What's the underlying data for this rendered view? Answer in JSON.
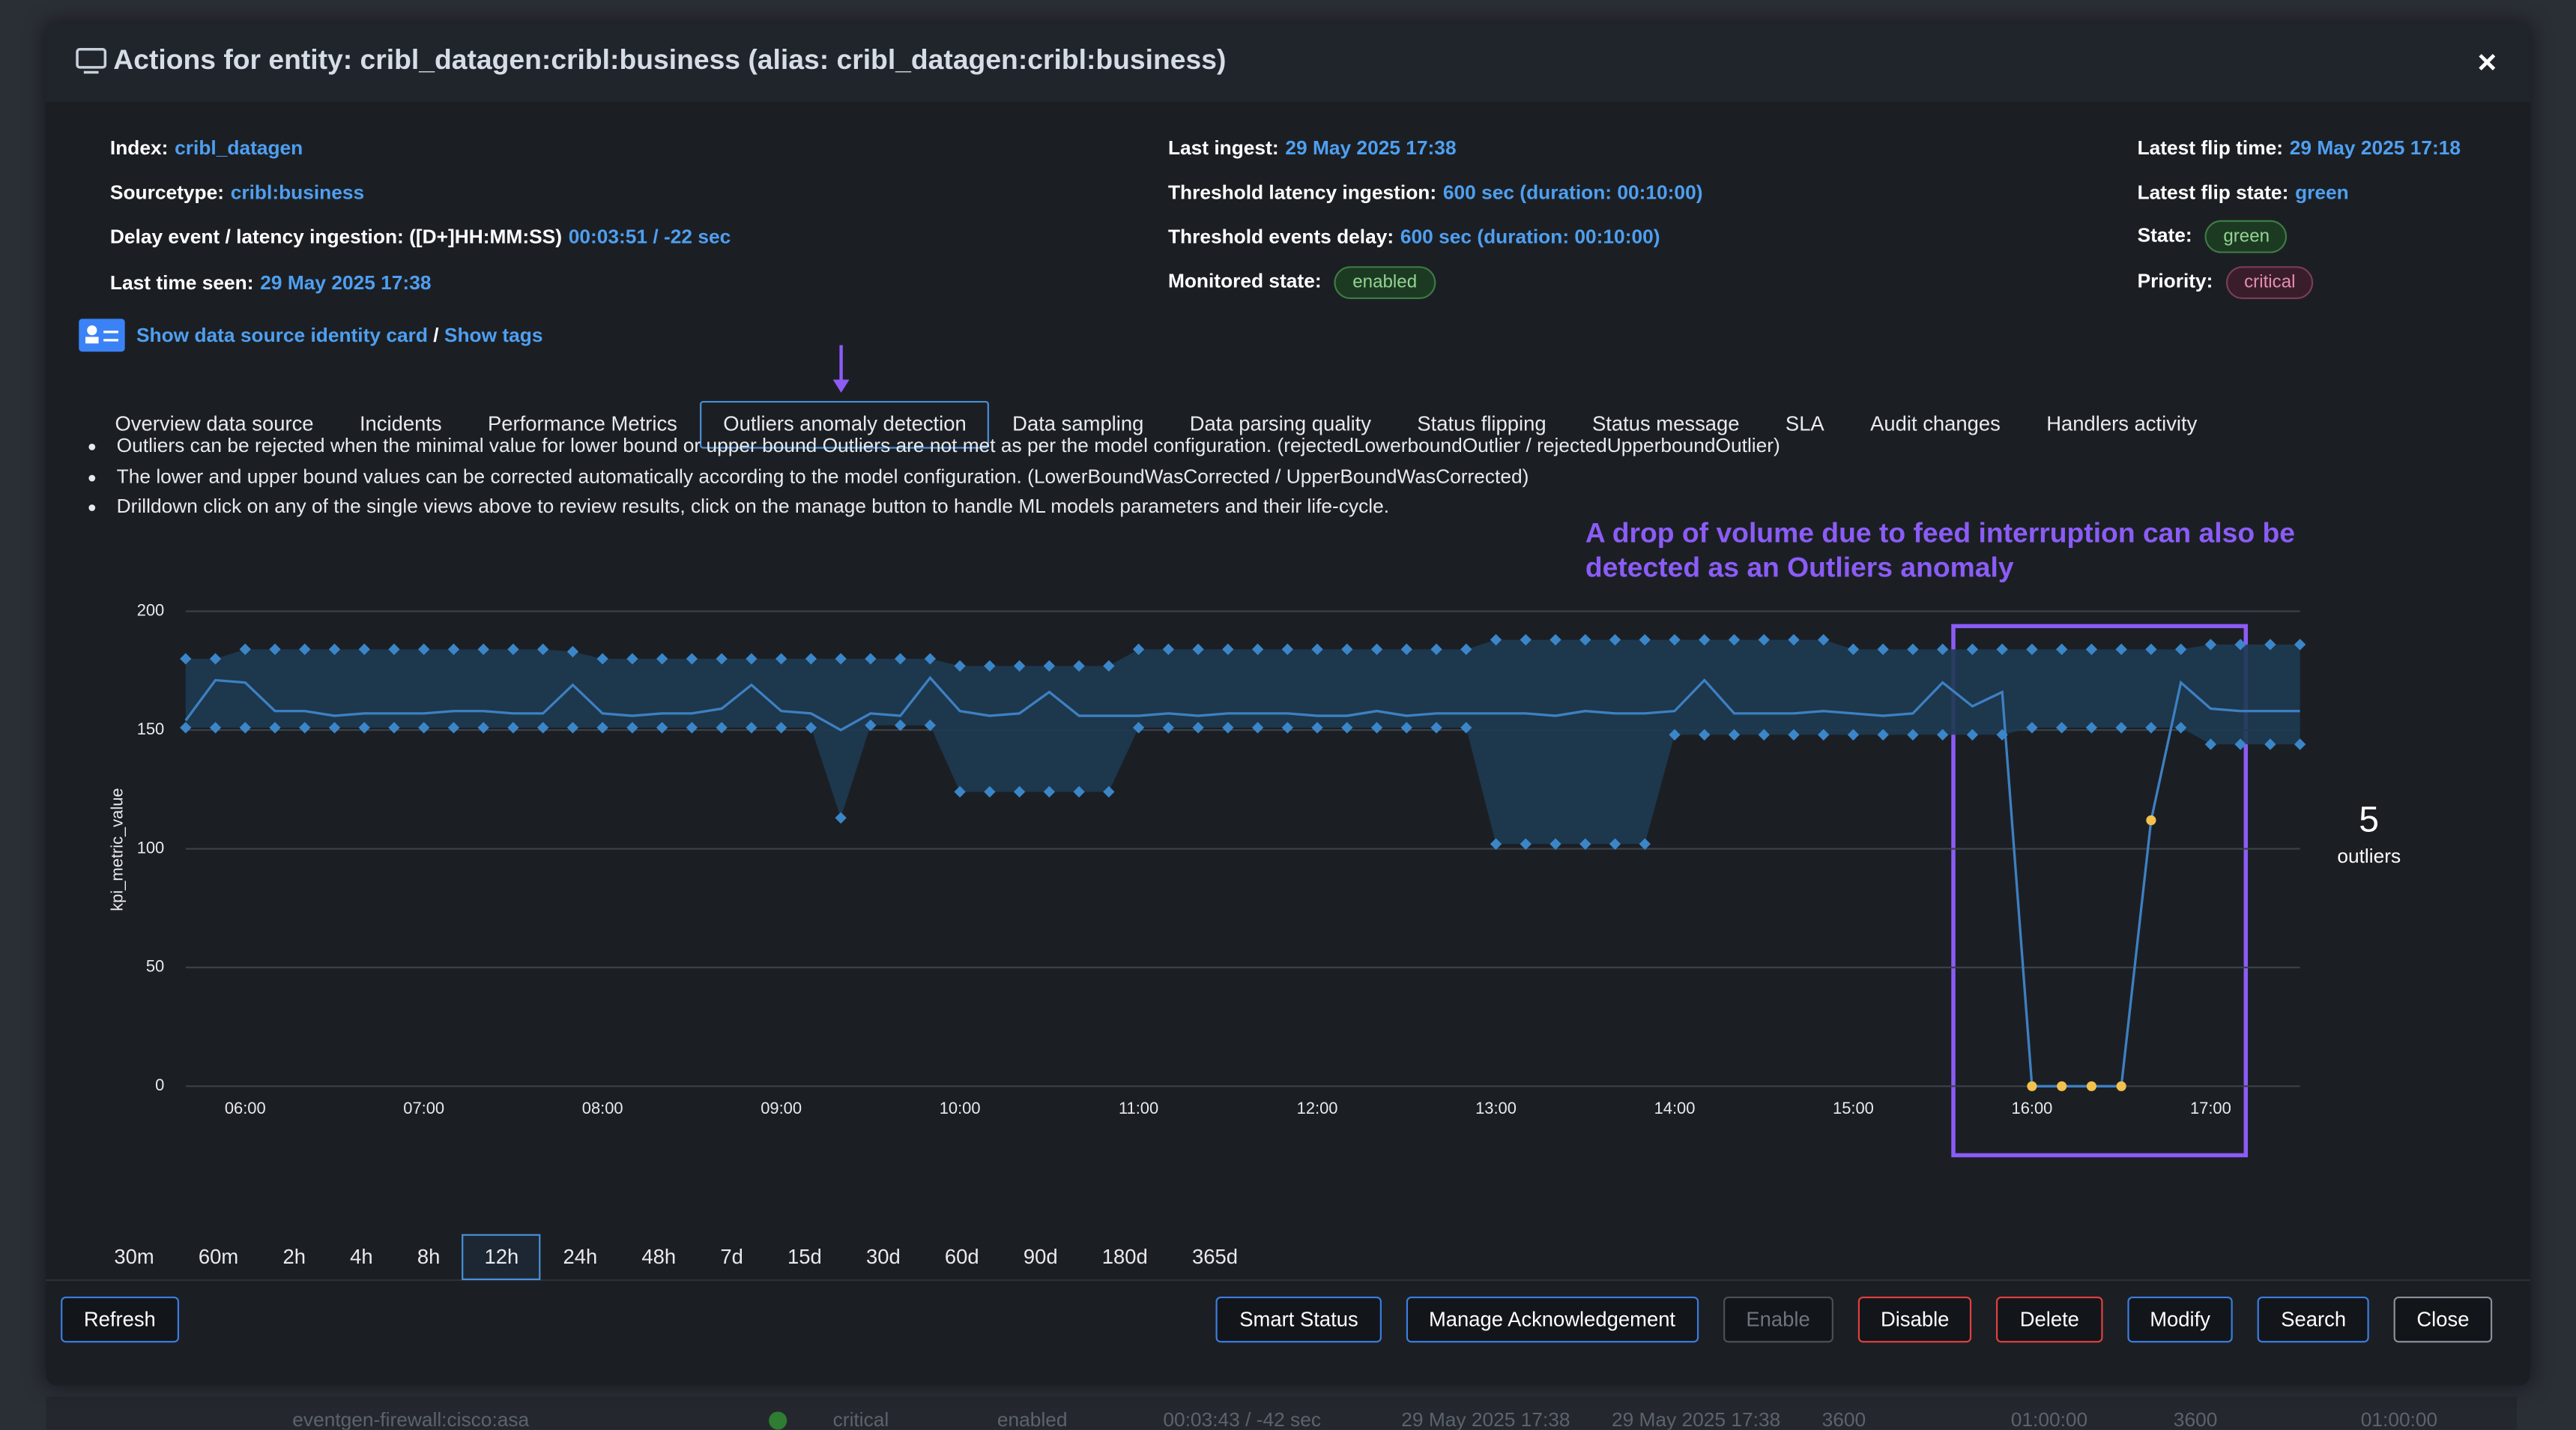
{
  "modal": {
    "title": "Actions for entity: cribl_datagen:cribl:business (alias: cribl_datagen:cribl:business)",
    "close": "×"
  },
  "info": {
    "col1": [
      {
        "label": "Index:",
        "value": "cribl_datagen"
      },
      {
        "label": "Sourcetype:",
        "value": "cribl:business"
      },
      {
        "label": "Delay event / latency ingestion: ([D+]HH:MM:SS)",
        "value": "00:03:51 / -22 sec"
      },
      {
        "label": "Last time seen:",
        "value": "29 May 2025 17:38"
      }
    ],
    "col2": [
      {
        "label": "Last ingest:",
        "value": "29 May 2025 17:38"
      },
      {
        "label": "Threshold latency ingestion:",
        "value": "600 sec (duration: 00:10:00)"
      },
      {
        "label": "Threshold events delay:",
        "value": "600 sec (duration: 00:10:00)"
      },
      {
        "label": "Monitored state:",
        "badge": "enabled",
        "badge_color": "green"
      }
    ],
    "col3": [
      {
        "label": "Latest flip time:",
        "value": "29 May 2025 17:18"
      },
      {
        "label": "Latest flip state:",
        "value": "green"
      },
      {
        "label": "State:",
        "badge": "green",
        "badge_color": "green"
      },
      {
        "label": "Priority:",
        "badge": "critical",
        "badge_color": "pink"
      }
    ]
  },
  "links": {
    "identity": "Show data source identity card",
    "separator": "/",
    "tags": "Show tags"
  },
  "tabs": {
    "items": [
      "Overview data source",
      "Incidents",
      "Performance Metrics",
      "Outliers anomaly detection",
      "Data sampling",
      "Data parsing quality",
      "Status flipping",
      "Status message",
      "SLA",
      "Audit changes",
      "Handlers activity"
    ],
    "active": 3
  },
  "notes": [
    "Outliers can be rejected when the minimal value for lower bound or upper bound Outliers are not met as per the model configuration. (rejectedLowerboundOutlier / rejectedUpperboundOutlier)",
    "The lower and upper bound values can be corrected automatically according to the model configuration. (LowerBoundWasCorrected / UpperBoundWasCorrected)",
    "Drilldown click on any of the single views above to review results, click on the manage button to handle ML models parameters and their life-cycle."
  ],
  "chart_data": {
    "type": "line",
    "y_label": "kpi_metric_value",
    "annotation": "A drop of volume due to feed interruption can also be detected as an Outliers anomaly",
    "outlier_count": 5,
    "outlier_label": "outliers",
    "grid": true,
    "xlim": [
      "05:40",
      "17:30"
    ],
    "xticks": [
      "06:00",
      "07:00",
      "08:00",
      "09:00",
      "10:00",
      "11:00",
      "12:00",
      "13:00",
      "14:00",
      "15:00",
      "16:00",
      "17:00"
    ],
    "ylim": [
      0,
      200
    ],
    "yticks": [
      0,
      50,
      100,
      150,
      200
    ],
    "x": [
      "05:40",
      "05:50",
      "06:00",
      "06:10",
      "06:20",
      "06:30",
      "06:40",
      "06:50",
      "07:00",
      "07:10",
      "07:20",
      "07:30",
      "07:40",
      "07:50",
      "08:00",
      "08:10",
      "08:20",
      "08:30",
      "08:40",
      "08:50",
      "09:00",
      "09:10",
      "09:20",
      "09:30",
      "09:40",
      "09:50",
      "10:00",
      "10:10",
      "10:20",
      "10:30",
      "10:40",
      "10:50",
      "11:00",
      "11:10",
      "11:20",
      "11:30",
      "11:40",
      "11:50",
      "12:00",
      "12:10",
      "12:20",
      "12:30",
      "12:40",
      "12:50",
      "13:00",
      "13:10",
      "13:20",
      "13:30",
      "13:40",
      "13:50",
      "14:00",
      "14:10",
      "14:20",
      "14:30",
      "14:40",
      "14:50",
      "15:00",
      "15:10",
      "15:20",
      "15:30",
      "15:40",
      "15:50",
      "16:00",
      "16:10",
      "16:20",
      "16:30",
      "16:40",
      "16:50",
      "17:00",
      "17:10",
      "17:20",
      "17:30"
    ],
    "series": [
      {
        "style": "line",
        "color": "#3d80c2",
        "values": [
          154,
          171,
          170,
          158,
          158,
          156,
          157,
          157,
          157,
          158,
          158,
          157,
          157,
          169,
          157,
          156,
          157,
          157,
          159,
          169,
          158,
          157,
          150,
          157,
          156,
          172,
          158,
          156,
          157,
          166,
          156,
          156,
          156,
          157,
          156,
          157,
          157,
          157,
          156,
          156,
          158,
          156,
          157,
          157,
          157,
          157,
          156,
          158,
          157,
          157,
          158,
          171,
          157,
          157,
          157,
          158,
          157,
          156,
          157,
          170,
          160,
          166,
          0,
          0,
          0,
          0,
          112,
          170,
          159,
          158,
          158,
          158
        ]
      },
      {
        "style": "band-upper",
        "color": "#3b86c8",
        "values": [
          180,
          180,
          184,
          184,
          184,
          184,
          184,
          184,
          184,
          184,
          184,
          184,
          184,
          183,
          180,
          180,
          180,
          180,
          180,
          180,
          180,
          180,
          180,
          180,
          180,
          180,
          177,
          177,
          177,
          177,
          177,
          177,
          184,
          184,
          184,
          184,
          184,
          184,
          184,
          184,
          184,
          184,
          184,
          184,
          188,
          188,
          188,
          188,
          188,
          188,
          188,
          188,
          188,
          188,
          188,
          188,
          184,
          184,
          184,
          184,
          184,
          184,
          184,
          184,
          184,
          184,
          184,
          184,
          186,
          186,
          186,
          186
        ]
      },
      {
        "style": "band-lower",
        "color": "#3b86c8",
        "values": [
          151,
          151,
          151,
          151,
          151,
          151,
          151,
          151,
          151,
          151,
          151,
          151,
          151,
          151,
          151,
          151,
          151,
          151,
          151,
          151,
          151,
          151,
          113,
          152,
          152,
          152,
          124,
          124,
          124,
          124,
          124,
          124,
          151,
          151,
          151,
          151,
          151,
          151,
          151,
          151,
          151,
          151,
          151,
          151,
          102,
          102,
          102,
          102,
          102,
          102,
          148,
          148,
          148,
          148,
          148,
          148,
          148,
          148,
          148,
          148,
          148,
          148,
          151,
          151,
          151,
          151,
          151,
          151,
          144,
          144,
          144,
          144
        ]
      },
      {
        "style": "markers",
        "color": "#f2c14e",
        "values": [
          null,
          null,
          null,
          null,
          null,
          null,
          null,
          null,
          null,
          null,
          null,
          null,
          null,
          null,
          null,
          null,
          null,
          null,
          null,
          null,
          null,
          null,
          null,
          null,
          null,
          null,
          null,
          null,
          null,
          null,
          null,
          null,
          null,
          null,
          null,
          null,
          null,
          null,
          null,
          null,
          null,
          null,
          null,
          null,
          null,
          null,
          null,
          null,
          null,
          null,
          null,
          null,
          null,
          null,
          null,
          null,
          null,
          null,
          null,
          null,
          null,
          null,
          0,
          0,
          0,
          0,
          112,
          null,
          null,
          null,
          null,
          null
        ]
      }
    ],
    "band_color": "#1e3a52"
  },
  "time_ranges": {
    "items": [
      "30m",
      "60m",
      "2h",
      "4h",
      "8h",
      "12h",
      "24h",
      "48h",
      "7d",
      "15d",
      "30d",
      "60d",
      "90d",
      "180d",
      "365d"
    ],
    "active": 5
  },
  "buttons": {
    "left": [
      {
        "label": "Refresh",
        "style": "primary"
      }
    ],
    "right": [
      {
        "label": "Smart Status",
        "style": "primary"
      },
      {
        "label": "Manage Acknowledgement",
        "style": "primary"
      },
      {
        "label": "Enable",
        "style": "disabled"
      },
      {
        "label": "Disable",
        "style": "danger"
      },
      {
        "label": "Delete",
        "style": "danger"
      },
      {
        "label": "Modify",
        "style": "primary"
      },
      {
        "label": "Search",
        "style": "primary"
      },
      {
        "label": "Close",
        "style": "plain"
      }
    ]
  },
  "background_row": [
    "eventgen-firewall:cisco:asa",
    "critical",
    "enabled",
    "00:03:43 / -42 sec",
    "29 May 2025 17:38",
    "29 May 2025 17:38",
    "3600",
    "01:00:00",
    "3600",
    "01:00:00"
  ]
}
